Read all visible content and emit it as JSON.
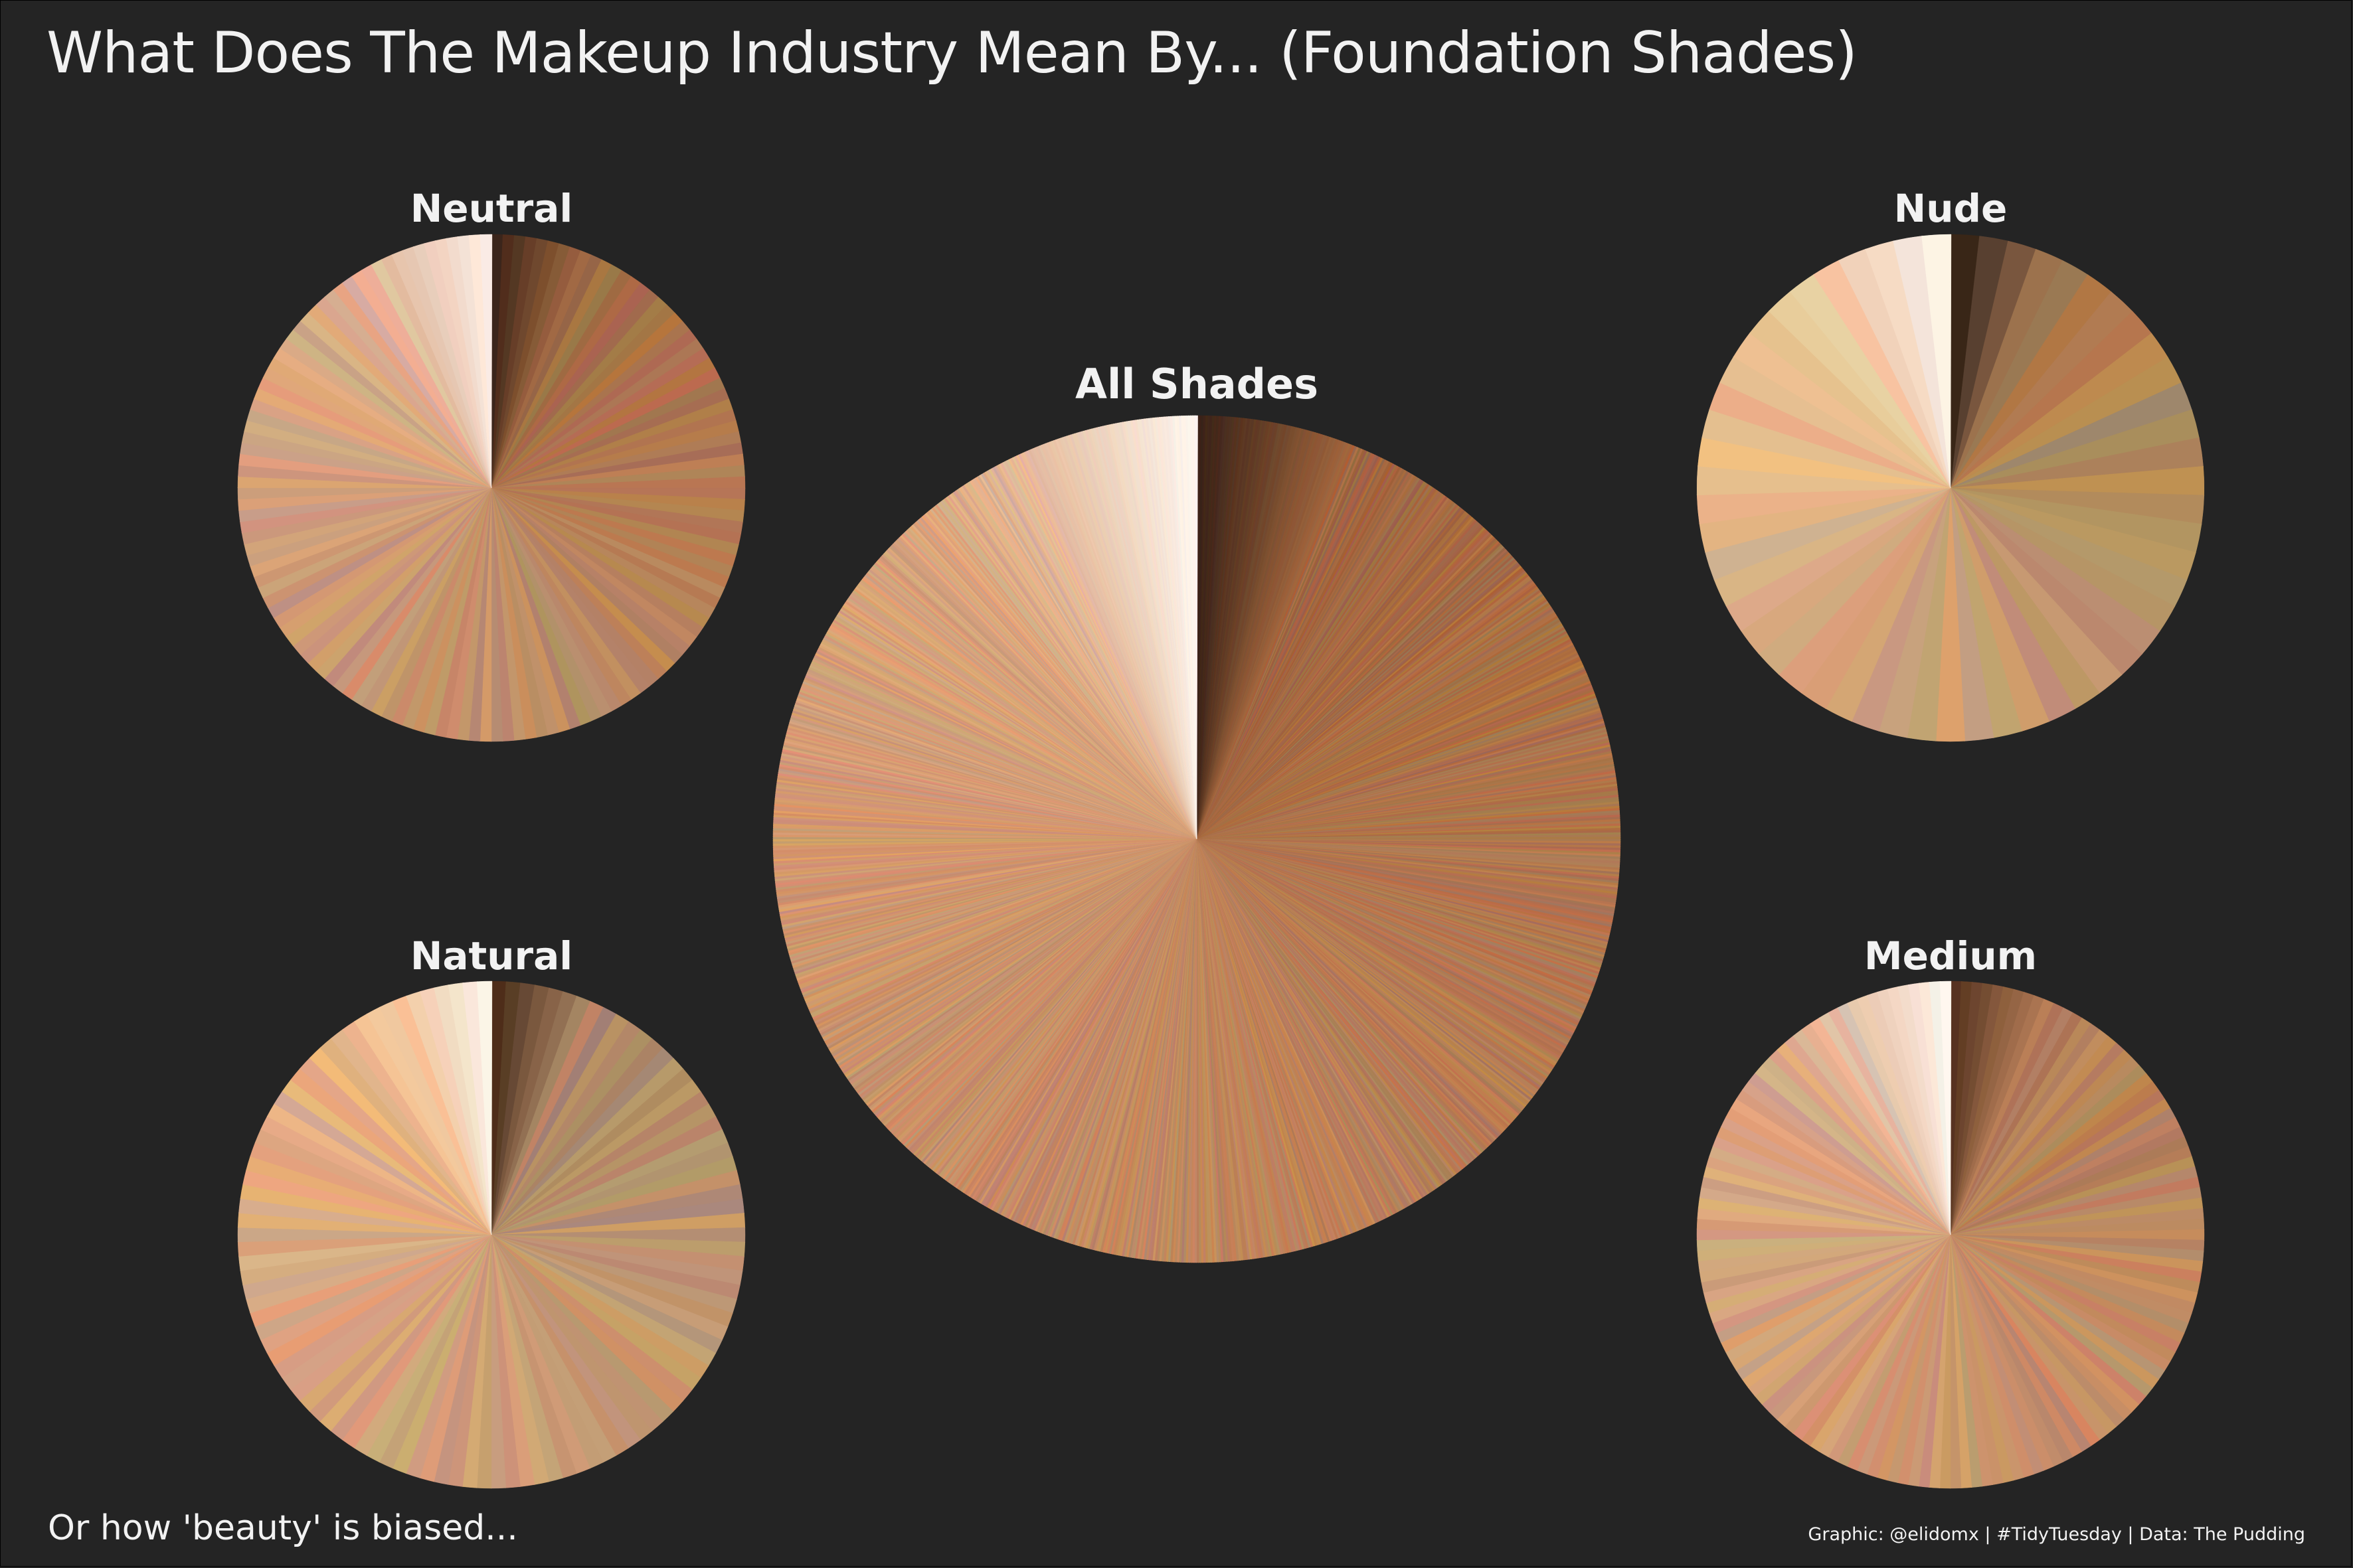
{
  "title": "What Does The Makeup Industry Mean By... (Foundation Shades)",
  "subtitle": "Or how 'beauty' is biased...",
  "caption": "Graphic: @elidomx | #TidyTuesday | Data: The Pudding",
  "background_color": "#242424",
  "chart_data": [
    {
      "type": "pie",
      "title": "All Shades",
      "slice_count": 1200,
      "slices": "equal-share slices, each colored with one foundation shade; ordered from darkest (clockwise from top) to lightest",
      "color_range": {
        "darkest": "#3a2116",
        "mid_dark": "#a2673f",
        "mid_light": "#d9a27a",
        "lightest": "#fff8f0"
      },
      "light_share": 0.13
    },
    {
      "type": "pie",
      "title": "Neutral",
      "slice_count": 140,
      "color_range": {
        "darkest": "#3f2516",
        "mid_dark": "#a56c45",
        "mid_light": "#dbaa85",
        "lightest": "#fff3ea"
      },
      "light_share": 0.14
    },
    {
      "type": "pie",
      "title": "Nude",
      "slice_count": 55,
      "color_range": {
        "darkest": "#3b261a",
        "mid_dark": "#a77a52",
        "mid_light": "#e8bb8f",
        "lightest": "#fffbf5"
      },
      "light_share": 0.17
    },
    {
      "type": "pie",
      "title": "Natural",
      "slice_count": 110,
      "color_range": {
        "darkest": "#4a2e1c",
        "mid_dark": "#b08a66",
        "mid_light": "#e7b185",
        "lightest": "#fffaf3"
      },
      "light_share": 0.12
    },
    {
      "type": "pie",
      "title": "Medium",
      "slice_count": 150,
      "color_range": {
        "darkest": "#5a3320",
        "mid_dark": "#b57e56",
        "mid_light": "#ddaa84",
        "lightest": "#fffaf5"
      },
      "light_share": 0.14
    }
  ]
}
